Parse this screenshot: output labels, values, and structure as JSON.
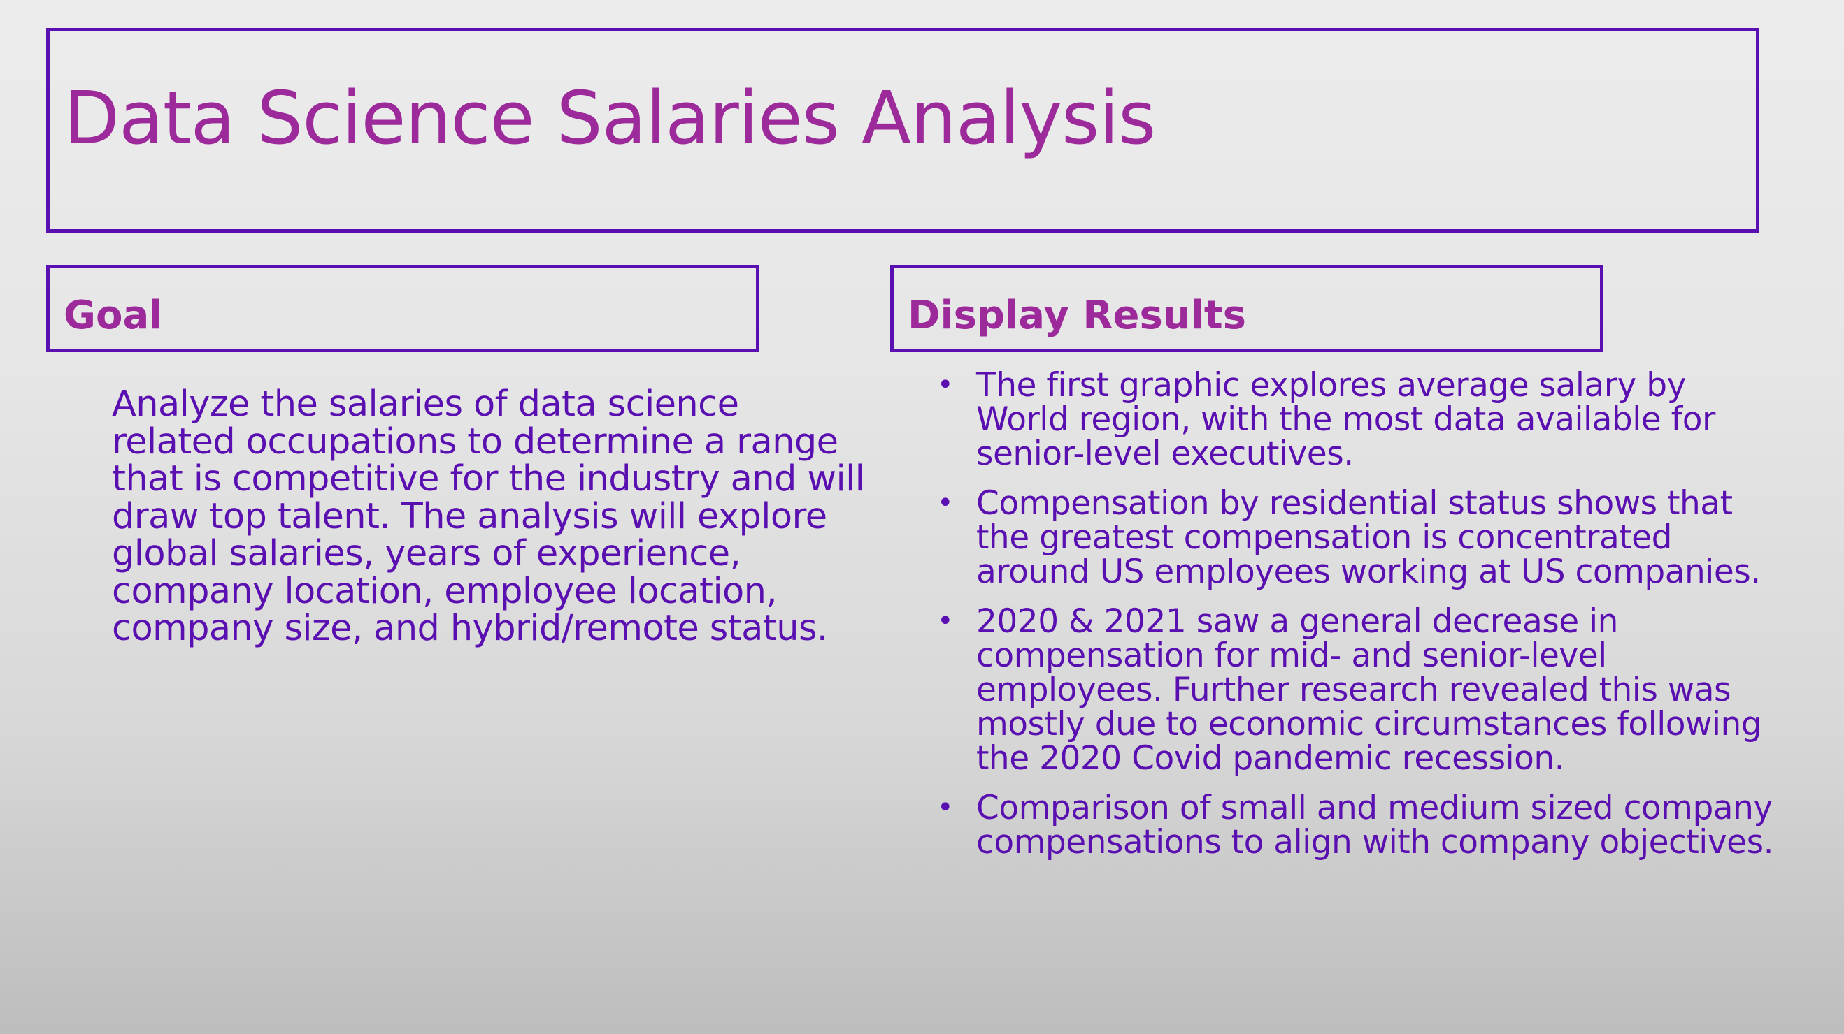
{
  "title": "Data Science Salaries Analysis",
  "goal": {
    "heading": "Goal",
    "text": "Analyze the salaries of data science related occupations to determine a range that is competitive for the industry and will draw top talent. The analysis will explore global salaries, years of experience, company location, employee location, company size, and hybrid/remote status."
  },
  "results": {
    "heading": "Display Results",
    "items": [
      "The first graphic explores average salary by World region, with the most data available for senior-level executives.",
      "Compensation by residential status shows that the greatest compensation is concentrated around US employees working at US companies.",
      "2020 & 2021 saw a general decrease in compensation for mid- and senior-level employees. Further research revealed this was mostly due to economic circumstances following the 2020 Covid pandemic recession.",
      "Comparison of small and medium sized company compensations to align with company objectives."
    ]
  },
  "colors": {
    "title_text": "#9c2a9a",
    "body_text": "#5a0fb0",
    "border": "#5a0fb0"
  }
}
